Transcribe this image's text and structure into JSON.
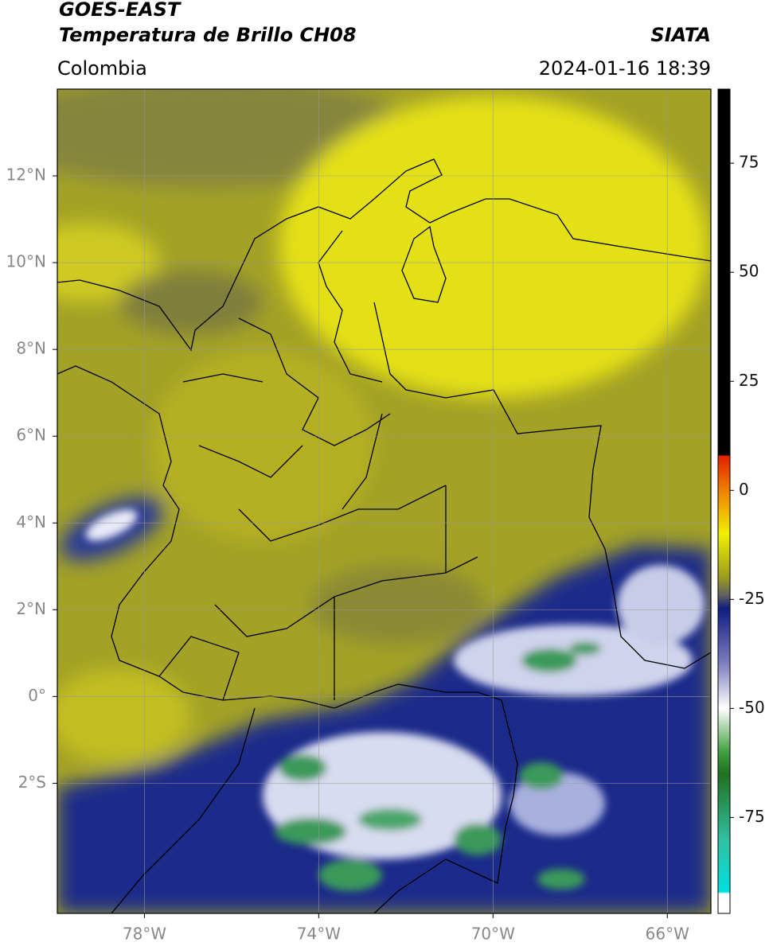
{
  "header": {
    "title": "GOES-EAST",
    "subtitle": "Temperatura de Brillo CH08",
    "source": "SIATA",
    "region": "Colombia",
    "datetime": "2024-01-16 18:39"
  },
  "map": {
    "xlim": [
      -80,
      -65
    ],
    "ylim": [
      -5,
      14
    ],
    "xticks": [
      {
        "value": -78,
        "label": "78°W"
      },
      {
        "value": -74,
        "label": "74°W"
      },
      {
        "value": -70,
        "label": "70°W"
      },
      {
        "value": -66,
        "label": "66°W"
      }
    ],
    "yticks": [
      {
        "value": 12,
        "label": "12°N"
      },
      {
        "value": 10,
        "label": "10°N"
      },
      {
        "value": 8,
        "label": "8°N"
      },
      {
        "value": 6,
        "label": "6°N"
      },
      {
        "value": 4,
        "label": "4°N"
      },
      {
        "value": 2,
        "label": "2°N"
      },
      {
        "value": 0,
        "label": "0°"
      },
      {
        "value": -2,
        "label": "2°S"
      }
    ],
    "grid": true
  },
  "colorbar": {
    "lim": [
      -97,
      92
    ],
    "ticks": [
      75,
      50,
      25,
      0,
      -25,
      -50,
      -75
    ]
  }
}
